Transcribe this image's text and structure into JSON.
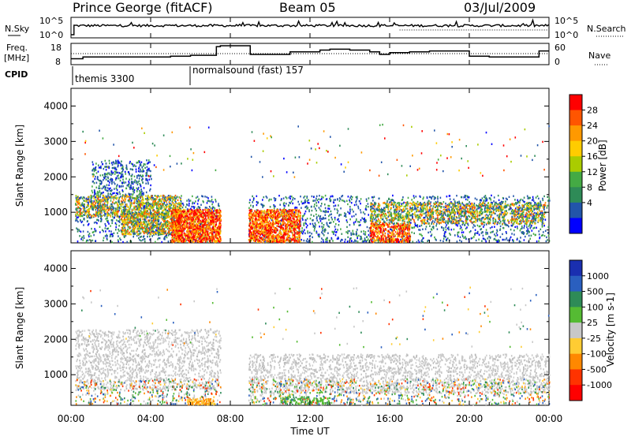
{
  "header": {
    "station": "Prince George (fitACF)",
    "beam": "Beam 05",
    "date": "03/Jul/2009"
  },
  "top_panels": {
    "nsky_label": "N.Sky",
    "nsky_ticks": [
      "10^5",
      "10^0"
    ],
    "nsearch_label": "N.Search",
    "nsearch_ticks": [
      "10^5",
      "10^0"
    ],
    "freq_label_1": "Freq.",
    "freq_label_2": "[MHz]",
    "freq_ticks": [
      "18",
      "8"
    ],
    "nave_label": "Nave",
    "nave_ticks": [
      "60",
      "0"
    ],
    "cpid_label": "CPID",
    "cpid_entries": [
      {
        "name": "themis 3300",
        "start_hour": 0.0
      },
      {
        "name": "normalsound (fast) 157",
        "start_hour": 6.0
      }
    ]
  },
  "power_panel": {
    "ylabel": "Slant Range [km]",
    "yticks": [
      "4000",
      "3000",
      "2000",
      "1000"
    ],
    "colorbar_label": "Power [dB]",
    "colorbar_ticks": [
      "28",
      "24",
      "20",
      "16",
      "12",
      "8",
      "4"
    ],
    "colorbar_colors": [
      "#ff0000",
      "#ff5500",
      "#ff9900",
      "#ffcc00",
      "#aacc00",
      "#44aa44",
      "#2e8b57",
      "#2255aa",
      "#0000ff"
    ]
  },
  "velocity_panel": {
    "ylabel": "Slant Range [km]",
    "yticks": [
      "4000",
      "3000",
      "2000",
      "1000"
    ],
    "colorbar_label": "Velocity [m s-1]",
    "colorbar_ticks": [
      "1000",
      "500",
      "100",
      "25",
      "-25",
      "-100",
      "-500",
      "-1000"
    ],
    "colorbar_colors": [
      "#1a2fb0",
      "#2a5fbf",
      "#2e8b57",
      "#55bb33",
      "#c8c8c8",
      "#ffcc33",
      "#ff8800",
      "#ff3300",
      "#ff0000"
    ]
  },
  "xaxis": {
    "label": "Time UT",
    "ticks": [
      "00:00",
      "04:00",
      "08:00",
      "12:00",
      "16:00",
      "20:00",
      "00:00"
    ]
  },
  "chart_data": {
    "type": "heatmap",
    "x_range_hours": [
      0,
      24
    ],
    "y_range_km": [
      180,
      4500
    ],
    "data_gap_hours": [
      7.5,
      8.9
    ],
    "cpid_change_hour": 6.0,
    "freq_mhz": {
      "x_hours": [
        0,
        0.6,
        1.5,
        3.0,
        5.0,
        6.0,
        7.3,
        7.5,
        8.9,
        9.0,
        10.5,
        11.0,
        12.0,
        12.5,
        13.0,
        14.0,
        15.0,
        15.5,
        16.0,
        17.0,
        18.0,
        19.5,
        20.0,
        21.0,
        22.0,
        23.5,
        24.0
      ],
      "values": [
        10.5,
        11.5,
        11.5,
        11.5,
        12.0,
        12.5,
        17.5,
        18,
        18,
        13.0,
        13.0,
        14.5,
        14.5,
        15.5,
        16.0,
        15.5,
        14.5,
        13.0,
        14.0,
        14.5,
        15.0,
        15.0,
        12.0,
        11.5,
        11.5,
        15.0,
        15.0
      ]
    },
    "noise_sky_level": "~10^4 (log scale)",
    "power_scale_db": [
      0,
      30
    ],
    "velocity_scale_ms": [
      -1000,
      1000
    ]
  }
}
